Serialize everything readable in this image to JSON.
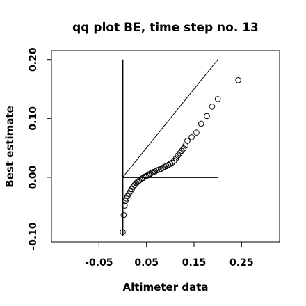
{
  "chart_data": {
    "type": "scatter",
    "title": "qq plot BE, time step no. 13",
    "xlabel": "Altimeter data",
    "ylabel": "Best estimate",
    "xlim": [
      -0.15,
      0.33
    ],
    "ylim": [
      -0.11,
      0.215
    ],
    "xticks": [
      {
        "value": -0.05,
        "label": "-0.05"
      },
      {
        "value": 0.05,
        "label": "0.05"
      },
      {
        "value": 0.15,
        "label": "0.15"
      },
      {
        "value": 0.25,
        "label": "0.25"
      }
    ],
    "yticks": [
      {
        "value": -0.1,
        "label": "-0.10"
      },
      {
        "value": 0.0,
        "label": "0.00"
      },
      {
        "value": 0.1,
        "label": "0.10"
      },
      {
        "value": 0.2,
        "label": "0.20"
      }
    ],
    "grid": false,
    "reference_lines": [
      {
        "type": "identity",
        "x": [
          0.0,
          0.2
        ],
        "y": [
          0.0,
          0.2
        ]
      },
      {
        "type": "horizontal",
        "x": [
          0.0,
          0.2
        ],
        "y": [
          0.0,
          0.0
        ]
      },
      {
        "type": "vertical",
        "x": [
          0.0,
          0.0
        ],
        "y": [
          -0.1,
          0.2
        ]
      }
    ],
    "series": [
      {
        "marker": "open-circle",
        "x": [
          0.0,
          0.002,
          0.004,
          0.006,
          0.008,
          0.01,
          0.013,
          0.016,
          0.019,
          0.022,
          0.025,
          0.028,
          0.031,
          0.034,
          0.037,
          0.04,
          0.043,
          0.046,
          0.049,
          0.052,
          0.055,
          0.058,
          0.061,
          0.064,
          0.068,
          0.072,
          0.076,
          0.08,
          0.084,
          0.088,
          0.092,
          0.096,
          0.1,
          0.104,
          0.108,
          0.112,
          0.116,
          0.12,
          0.124,
          0.128,
          0.132,
          0.136,
          0.145,
          0.155,
          0.165,
          0.177,
          0.188,
          0.2,
          0.243
        ],
        "y": [
          -0.093,
          -0.064,
          -0.048,
          -0.04,
          -0.036,
          -0.032,
          -0.028,
          -0.024,
          -0.02,
          -0.016,
          -0.013,
          -0.01,
          -0.008,
          -0.006,
          -0.004,
          -0.002,
          -0.001,
          0.001,
          0.002,
          0.003,
          0.005,
          0.006,
          0.008,
          0.009,
          0.01,
          0.012,
          0.013,
          0.014,
          0.016,
          0.018,
          0.019,
          0.021,
          0.023,
          0.025,
          0.028,
          0.032,
          0.037,
          0.041,
          0.045,
          0.049,
          0.054,
          0.062,
          0.068,
          0.076,
          0.091,
          0.104,
          0.12,
          0.133,
          0.165
        ]
      }
    ]
  }
}
